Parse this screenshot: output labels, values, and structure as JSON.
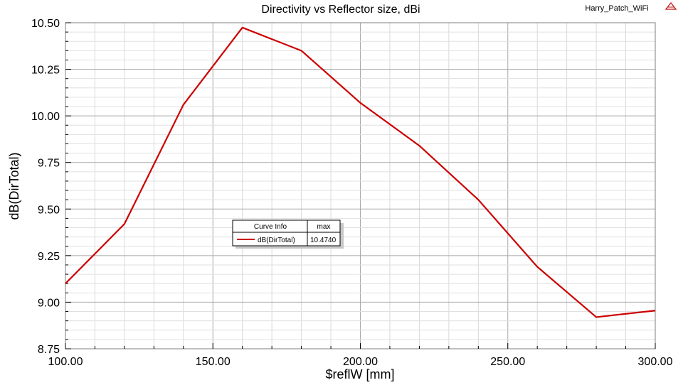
{
  "header": {
    "title": "Directivity vs Reflector size, dBi",
    "project": "Harry_Patch_WiFi",
    "logo_icon": "ansys-logo-icon"
  },
  "chart_data": {
    "type": "line",
    "title": "Directivity vs Reflector size, dBi",
    "xlabel": "$reflW [mm]",
    "ylabel": "dB(DirTotal)",
    "xlim": [
      100,
      300
    ],
    "ylim": [
      8.75,
      10.5
    ],
    "x_ticks": [
      "100.00",
      "150.00",
      "200.00",
      "250.00",
      "300.00"
    ],
    "y_ticks": [
      "8.75",
      "9.00",
      "9.25",
      "9.50",
      "9.75",
      "10.00",
      "10.25",
      "10.50"
    ],
    "grid": true,
    "series": [
      {
        "name": "dB(DirTotal)",
        "color": "#cc0000",
        "x": [
          100,
          120,
          140,
          160,
          180,
          200,
          220,
          240,
          260,
          280,
          300
        ],
        "y": [
          9.1,
          9.42,
          10.06,
          10.474,
          10.35,
          10.07,
          9.84,
          9.55,
          9.19,
          8.92,
          8.955
        ]
      }
    ]
  },
  "legend": {
    "header_label": "Curve Info",
    "header_value": "max",
    "rows": [
      {
        "name": "dB(DirTotal)",
        "value": "10.4740",
        "color": "#cc0000"
      }
    ]
  }
}
